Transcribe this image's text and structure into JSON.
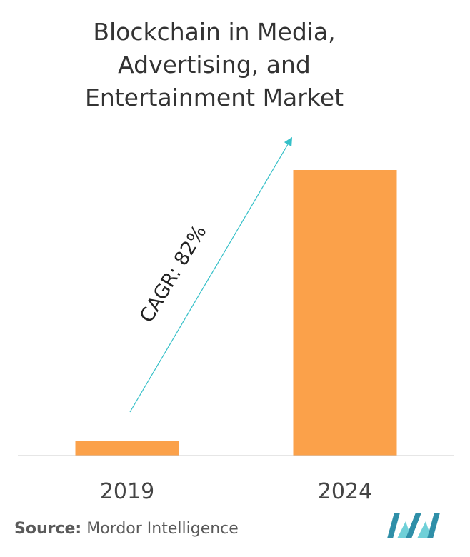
{
  "chart_data": {
    "type": "bar",
    "title_lines": [
      "Blockchain in Media,",
      "Advertising, and",
      "Entertainment Market"
    ],
    "categories": [
      "2019",
      "2024"
    ],
    "values": [
      1,
      20
    ],
    "ylim": [
      0,
      22
    ],
    "grid": false,
    "legend": "none",
    "annotation": "CAGR: 82%",
    "bar_color": "#fba14a",
    "arrow_color": "#35c0c8",
    "axis_color": "#cccccc"
  },
  "footer": {
    "source_label": "Source:",
    "source_text": "Mordor Intelligence"
  },
  "logo": {
    "icon": "mordor-intelligence-logo",
    "colors": [
      "#2f8fa8",
      "#6fd0d8"
    ]
  }
}
